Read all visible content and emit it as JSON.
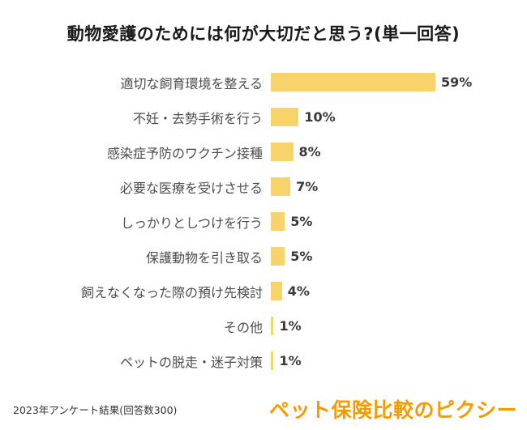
{
  "title": "動物愛護のためには何が大切だと思う?(単一回答)",
  "footer": "2023年アンケート結果(回答数300)",
  "logo": "ペット保険比較のピクシー",
  "colors": {
    "bar": "#F8D26A",
    "logo": "#F59B00",
    "category_label": "#4f4b4a",
    "value_label": "#3c3836",
    "title": "#1a1a1a"
  },
  "chart_data": {
    "type": "bar",
    "orientation": "horizontal",
    "title": "動物愛護のためには何が大切だと思う?(単一回答)",
    "categories": [
      "適切な飼育環境を整える",
      "不妊・去勢手術を行う",
      "感染症予防のワクチン接種",
      "必要な医療を受けさせる",
      "しっかりとしつけを行う",
      "保護動物を引き取る",
      "飼えなくなった際の預け先検討",
      "その他",
      "ペットの脱走・迷子対策"
    ],
    "values": [
      59,
      10,
      8,
      7,
      5,
      5,
      4,
      1,
      1
    ],
    "value_suffix": "%",
    "xlim": [
      0,
      60
    ],
    "grid": false,
    "legend": false,
    "source_note": "2023年アンケート結果(回答数300)"
  }
}
